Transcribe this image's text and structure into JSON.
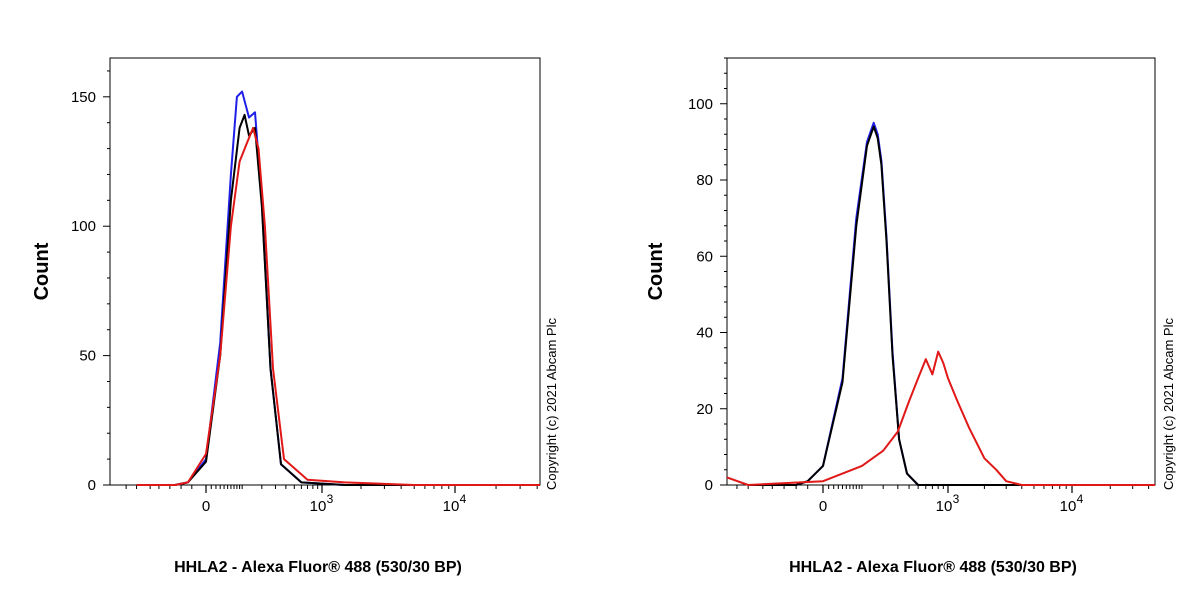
{
  "chart_data": [
    {
      "type": "line",
      "title": "",
      "xlabel": "HHLA2 - Alexa Fluor® 488 (530/30 BP)",
      "ylabel": "Count",
      "x_scale": "biexponential",
      "x_tick_labels": [
        {
          "value": 0,
          "label": "0"
        },
        {
          "value": 1000,
          "label": "10",
          "exp": "3"
        },
        {
          "value": 10000,
          "label": "10",
          "exp": "4"
        }
      ],
      "ylim": [
        0,
        165
      ],
      "y_ticks": [
        0,
        50,
        100,
        150
      ],
      "grid": false,
      "legend": "none",
      "copyright": "Copyright (c) 2021 Abcam Plc",
      "series": [
        {
          "color": "#1f1fe8",
          "x": [
            -300,
            -80,
            -40,
            0,
            30,
            60,
            80,
            100,
            130,
            160,
            200,
            260,
            350,
            600,
            1500,
            5000,
            60000
          ],
          "y": [
            0,
            0,
            1,
            10,
            55,
            120,
            150,
            152,
            142,
            144,
            110,
            45,
            8,
            1,
            0,
            0,
            0
          ]
        },
        {
          "color": "#000000",
          "x": [
            -300,
            -80,
            -40,
            0,
            30,
            60,
            90,
            110,
            130,
            160,
            200,
            260,
            350,
            600,
            1500,
            5000,
            60000
          ],
          "y": [
            0,
            0,
            1,
            9,
            50,
            110,
            138,
            143,
            135,
            138,
            108,
            45,
            8,
            1,
            0,
            0,
            0
          ]
        },
        {
          "color": "#e01818",
          "x": [
            -300,
            -80,
            -40,
            0,
            30,
            60,
            90,
            120,
            150,
            180,
            220,
            280,
            380,
            700,
            1500,
            5000,
            60000
          ],
          "y": [
            0,
            0,
            1,
            12,
            50,
            100,
            125,
            132,
            138,
            130,
            100,
            45,
            10,
            2,
            1,
            0,
            0
          ]
        }
      ]
    },
    {
      "type": "line",
      "title": "",
      "xlabel": "HHLA2 - Alexa Fluor® 488 (530/30 BP)",
      "ylabel": "Count",
      "x_scale": "biexponential",
      "x_tick_labels": [
        {
          "value": 0,
          "label": "0"
        },
        {
          "value": 1000,
          "label": "10",
          "exp": "3"
        },
        {
          "value": 10000,
          "label": "10",
          "exp": "4"
        }
      ],
      "ylim": [
        0,
        112
      ],
      "y_ticks": [
        0,
        20,
        40,
        60,
        80,
        100
      ],
      "grid": false,
      "legend": "none",
      "copyright": "Copyright (c) 2021 Abcam Plc",
      "series": [
        {
          "color": "#1f1fe8",
          "x": [
            -300,
            -60,
            -30,
            0,
            40,
            80,
            120,
            150,
            170,
            190,
            220,
            260,
            310,
            380,
            500,
            1000,
            60000
          ],
          "y": [
            0,
            0,
            1,
            5,
            28,
            70,
            90,
            95,
            92,
            85,
            65,
            35,
            12,
            3,
            0,
            0,
            0
          ]
        },
        {
          "color": "#000000",
          "x": [
            -300,
            -60,
            -30,
            0,
            40,
            80,
            120,
            150,
            170,
            190,
            220,
            260,
            310,
            380,
            500,
            1000,
            60000
          ],
          "y": [
            0,
            0,
            1,
            5,
            27,
            68,
            89,
            94,
            91,
            84,
            64,
            34,
            12,
            3,
            0,
            0,
            0
          ]
        },
        {
          "color": "#e01818",
          "x": [
            -1000,
            -300,
            0,
            100,
            200,
            300,
            400,
            500,
            600,
            700,
            800,
            900,
            1000,
            1200,
            1500,
            2000,
            2500,
            3000,
            4000,
            60000
          ],
          "y": [
            2,
            0,
            1,
            5,
            9,
            14,
            22,
            28,
            33,
            29,
            35,
            32,
            28,
            22,
            15,
            7,
            4,
            1,
            0,
            0
          ]
        }
      ]
    }
  ]
}
